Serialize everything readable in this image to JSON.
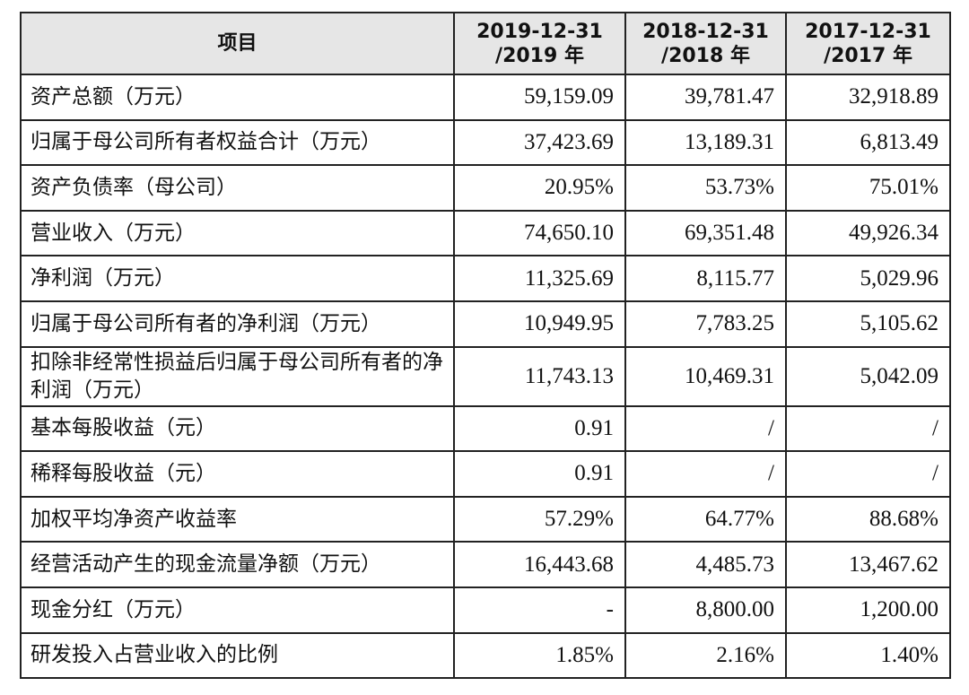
{
  "table": {
    "headers": [
      {
        "lines": [
          "项目"
        ]
      },
      {
        "lines": [
          "2019-12-31",
          "/2019 年"
        ]
      },
      {
        "lines": [
          "2018-12-31",
          "/2018 年"
        ]
      },
      {
        "lines": [
          "2017-12-31",
          "/2017 年"
        ]
      }
    ],
    "rows": [
      {
        "label": "资产总额（万元）",
        "values": [
          "59,159.09",
          "39,781.47",
          "32,918.89"
        ]
      },
      {
        "label": "归属于母公司所有者权益合计（万元）",
        "values": [
          "37,423.69",
          "13,189.31",
          "6,813.49"
        ]
      },
      {
        "label": "资产负债率（母公司）",
        "values": [
          "20.95%",
          "53.73%",
          "75.01%"
        ]
      },
      {
        "label": "营业收入（万元）",
        "values": [
          "74,650.10",
          "69,351.48",
          "49,926.34"
        ]
      },
      {
        "label": "净利润（万元）",
        "values": [
          "11,325.69",
          "8,115.77",
          "5,029.96"
        ]
      },
      {
        "label": "归属于母公司所有者的净利润（万元）",
        "values": [
          "10,949.95",
          "7,783.25",
          "5,105.62"
        ]
      },
      {
        "label": "扣除非经常性损益后归属于母公司所有者的净利润（万元）",
        "values": [
          "11,743.13",
          "10,469.31",
          "5,042.09"
        ]
      },
      {
        "label": "基本每股收益（元）",
        "values": [
          "0.91",
          "/",
          "/"
        ]
      },
      {
        "label": "稀释每股收益（元）",
        "values": [
          "0.91",
          "/",
          "/"
        ]
      },
      {
        "label": "加权平均净资产收益率",
        "values": [
          "57.29%",
          "64.77%",
          "88.68%"
        ]
      },
      {
        "label": "经营活动产生的现金流量净额（万元）",
        "values": [
          "16,443.68",
          "4,485.73",
          "13,467.62"
        ]
      },
      {
        "label": "现金分红（万元）",
        "values": [
          "-",
          "8,800.00",
          "1,200.00"
        ]
      },
      {
        "label": "研发投入占营业收入的比例",
        "values": [
          "1.85%",
          "2.16%",
          "1.40%"
        ]
      }
    ]
  }
}
